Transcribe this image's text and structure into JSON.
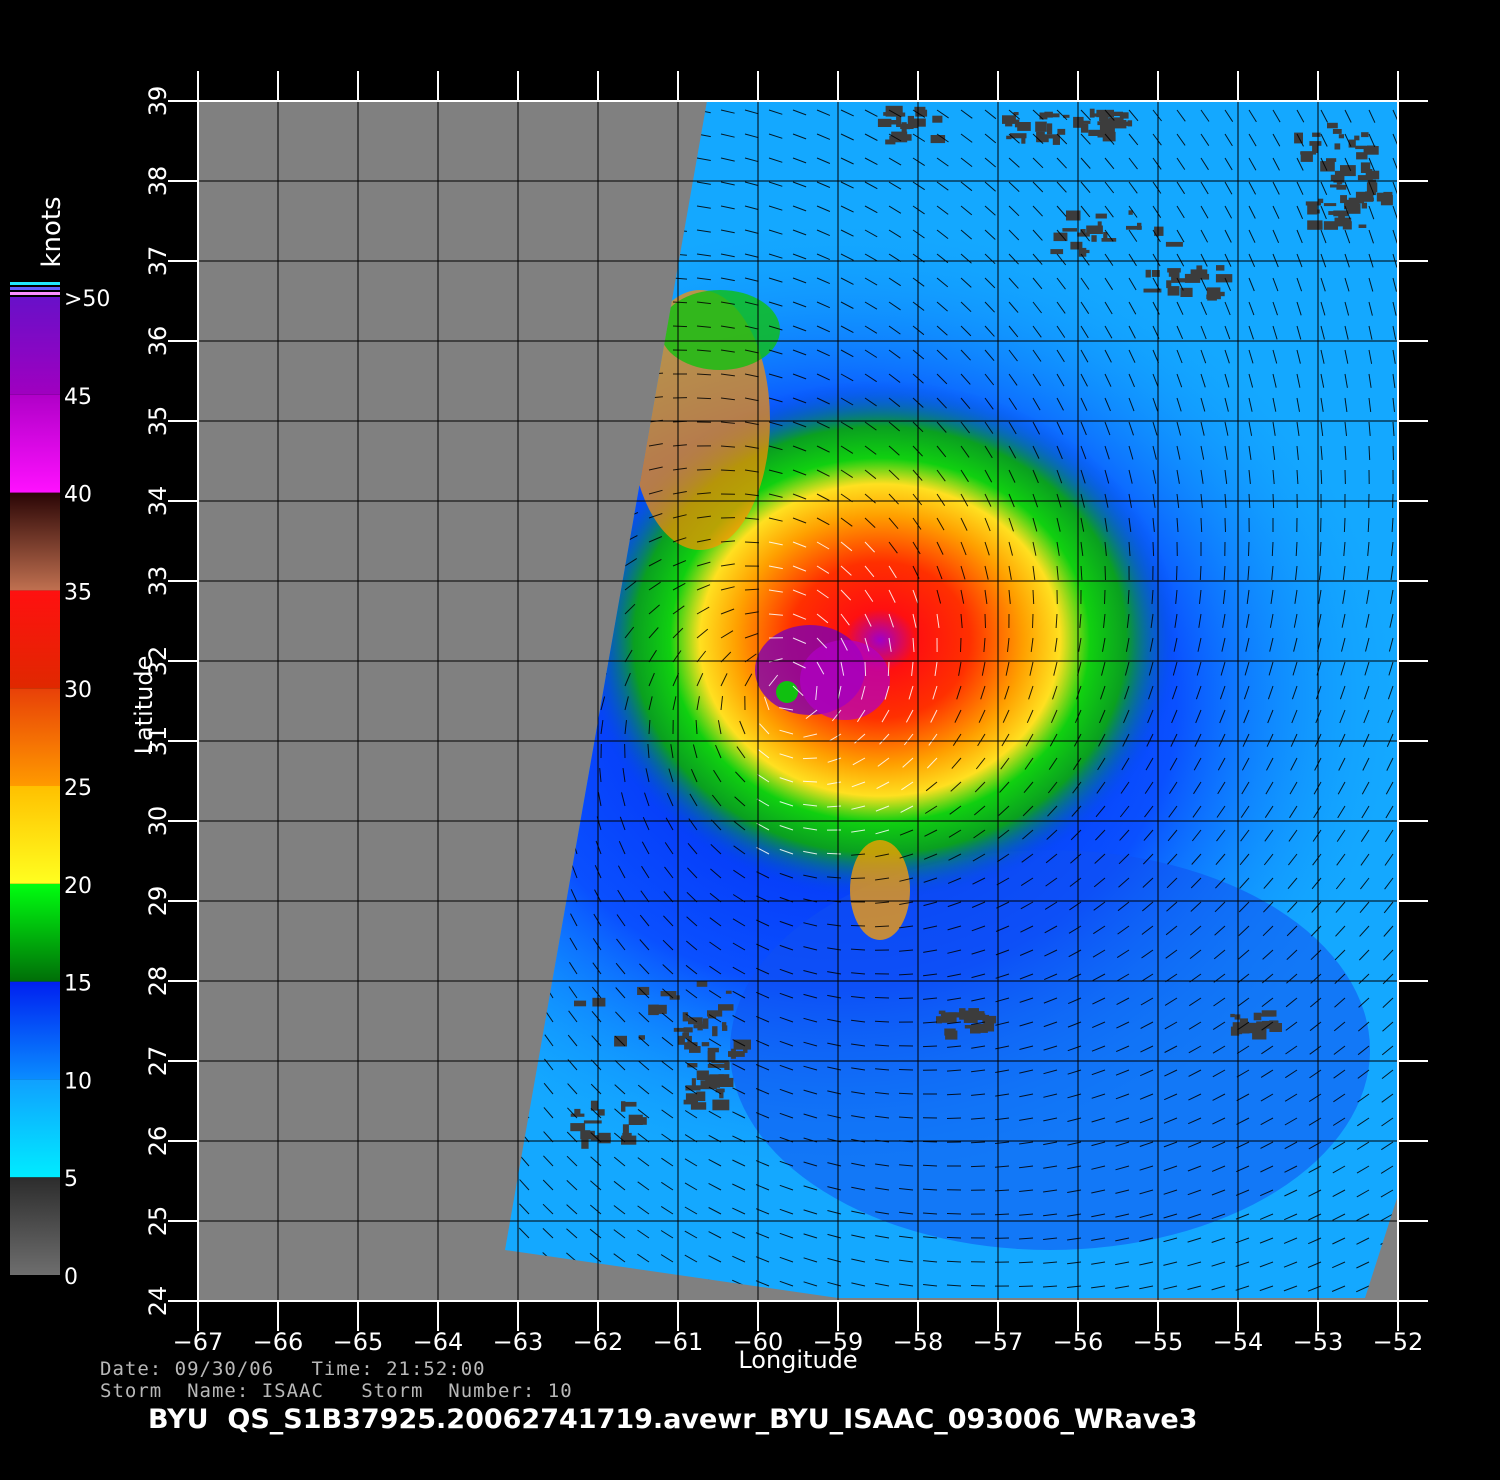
{
  "colorbar": {
    "units": "knots",
    "levels": [
      {
        "label": "0",
        "value": 0,
        "colors": [
          "#6e6e6e",
          "#2c2c2c"
        ]
      },
      {
        "label": "5",
        "value": 5,
        "colors": [
          "#00ecff",
          "#10a0ff"
        ]
      },
      {
        "label": "10",
        "value": 10,
        "colors": [
          "#0a8cff",
          "#0020f0"
        ]
      },
      {
        "label": "15",
        "value": 15,
        "colors": [
          "#006e08",
          "#00ff10"
        ]
      },
      {
        "label": "20",
        "value": 20,
        "colors": [
          "#ffff20",
          "#ffc000"
        ]
      },
      {
        "label": "25",
        "value": 25,
        "colors": [
          "#ff9a00",
          "#e84008"
        ]
      },
      {
        "label": "30",
        "value": 30,
        "colors": [
          "#e02800",
          "#ff1010"
        ]
      },
      {
        "label": "35",
        "value": 35,
        "colors": [
          "#c07050",
          "#2a0505"
        ]
      },
      {
        "label": "40",
        "value": 40,
        "colors": [
          "#ff10ff",
          "#b000c8"
        ]
      },
      {
        "label": "45",
        "value": 45,
        "colors": [
          "#a000c0",
          "#6810c8"
        ]
      },
      {
        "label": ">50",
        "value": 50,
        "colors": [
          "#6010c0",
          "#5010b0"
        ]
      }
    ]
  },
  "axes": {
    "xlabel": "Longitude",
    "ylabel": "Latitude",
    "xlim": [
      -67,
      -52
    ],
    "ylim": [
      24,
      39
    ],
    "xticks": [
      "−67",
      "−66",
      "−65",
      "−64",
      "−63",
      "−62",
      "−61",
      "−60",
      "−59",
      "−58",
      "−57",
      "−56",
      "−55",
      "−54",
      "−53",
      "−52"
    ],
    "yticks": [
      "24",
      "25",
      "26",
      "27",
      "28",
      "29",
      "30",
      "31",
      "32",
      "33",
      "34",
      "35",
      "36",
      "37",
      "38",
      "39"
    ]
  },
  "storm": {
    "center_lon": -59.6,
    "center_lat": 31.6
  },
  "info": {
    "line1": "Date: 09/30/06   Time: 21:52:00",
    "line2": "Storm  Name: ISAAC   Storm  Number: 10",
    "file": "BYU  QS_S1B37925.20062741719.avewr_BYU_ISAAC_093006_WRave3"
  },
  "colors": {
    "no_data": "#808080",
    "land_rain": "#3c3c3c",
    "background": "#000000"
  }
}
